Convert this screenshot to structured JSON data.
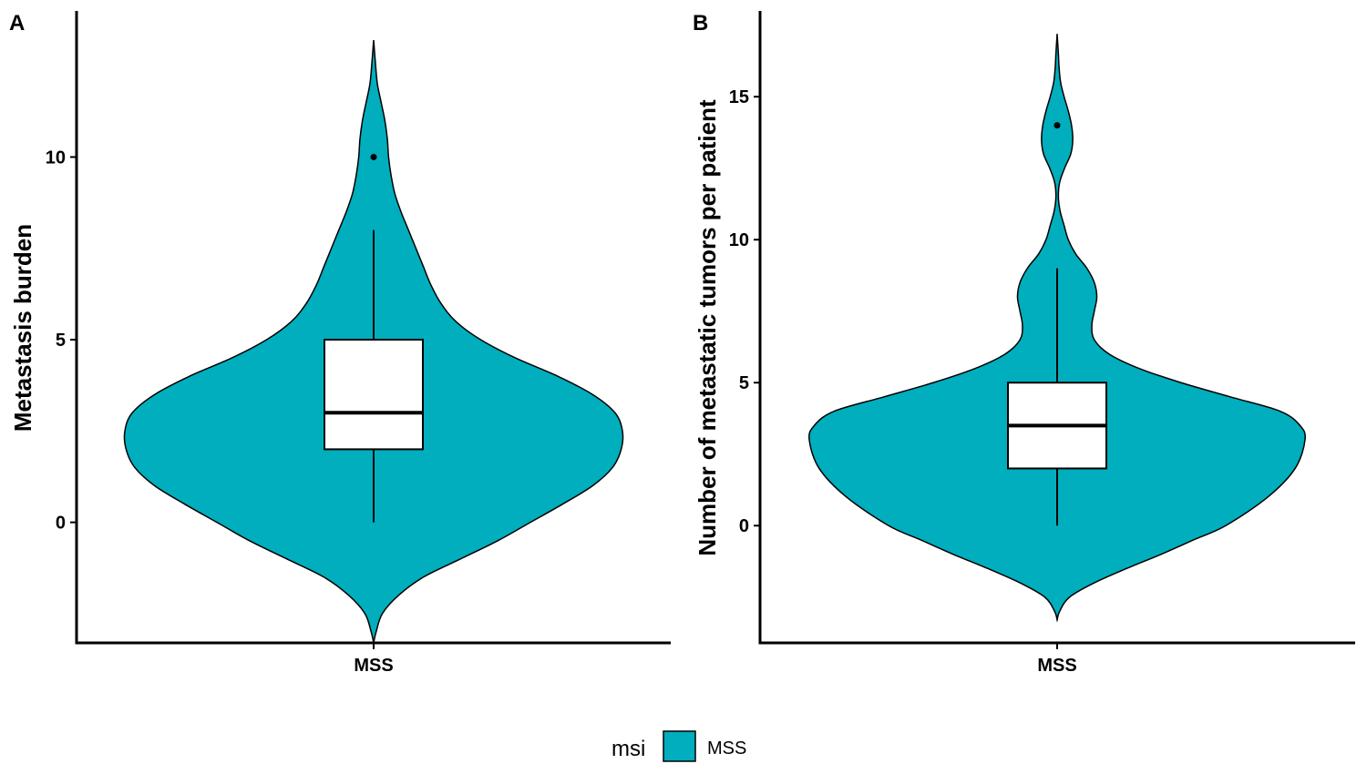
{
  "chart_data": [
    {
      "panel_tag": "A",
      "type": "violin",
      "ylabel": "Metastasis burden",
      "xlabel": "",
      "categories": [
        "MSS"
      ],
      "ylim": [
        -3.3,
        14.0
      ],
      "yticks": [
        0,
        5,
        10
      ],
      "grid": false,
      "fill_color": "#00AEBD",
      "violin": {
        "y_min": -3.3,
        "y_max": 13.2,
        "density_profile": [
          [
            -3.3,
            0.0
          ],
          [
            -3.0,
            0.01
          ],
          [
            -2.5,
            0.035
          ],
          [
            -2.0,
            0.1
          ],
          [
            -1.5,
            0.2
          ],
          [
            -1.0,
            0.35
          ],
          [
            -0.5,
            0.5
          ],
          [
            0.0,
            0.63
          ],
          [
            0.5,
            0.76
          ],
          [
            1.0,
            0.88
          ],
          [
            1.5,
            0.96
          ],
          [
            2.0,
            0.995
          ],
          [
            2.5,
            1.0
          ],
          [
            3.0,
            0.97
          ],
          [
            3.5,
            0.88
          ],
          [
            4.0,
            0.74
          ],
          [
            4.5,
            0.57
          ],
          [
            5.0,
            0.43
          ],
          [
            5.5,
            0.33
          ],
          [
            6.0,
            0.27
          ],
          [
            6.5,
            0.23
          ],
          [
            7.0,
            0.2
          ],
          [
            7.5,
            0.17
          ],
          [
            8.0,
            0.14
          ],
          [
            8.5,
            0.11
          ],
          [
            9.0,
            0.085
          ],
          [
            9.5,
            0.07
          ],
          [
            10.0,
            0.06
          ],
          [
            10.5,
            0.055
          ],
          [
            11.0,
            0.045
          ],
          [
            11.5,
            0.03
          ],
          [
            12.0,
            0.015
          ],
          [
            12.5,
            0.008
          ],
          [
            13.2,
            0.0
          ]
        ]
      },
      "box": {
        "min": 0,
        "q1": 2,
        "median": 3,
        "q3": 5,
        "max": 8
      },
      "outliers": [
        10
      ]
    },
    {
      "panel_tag": "B",
      "type": "violin",
      "ylabel": "Number of metastatic tumors per patient",
      "xlabel": "",
      "categories": [
        "MSS"
      ],
      "ylim": [
        -4.1,
        18.0
      ],
      "yticks": [
        0,
        5,
        10,
        15
      ],
      "grid": false,
      "fill_color": "#00AEBD",
      "violin": {
        "y_min": -3.3,
        "y_max": 17.2,
        "density_profile": [
          [
            -3.3,
            0.0
          ],
          [
            -3.0,
            0.01
          ],
          [
            -2.5,
            0.05
          ],
          [
            -2.0,
            0.15
          ],
          [
            -1.5,
            0.28
          ],
          [
            -1.0,
            0.42
          ],
          [
            -0.5,
            0.55
          ],
          [
            0.0,
            0.68
          ],
          [
            1.0,
            0.85
          ],
          [
            2.0,
            0.96
          ],
          [
            3.0,
            1.0
          ],
          [
            3.5,
            0.98
          ],
          [
            4.0,
            0.9
          ],
          [
            4.5,
            0.7
          ],
          [
            5.0,
            0.5
          ],
          [
            5.5,
            0.33
          ],
          [
            6.0,
            0.21
          ],
          [
            6.5,
            0.15
          ],
          [
            7.0,
            0.14
          ],
          [
            7.5,
            0.15
          ],
          [
            8.0,
            0.16
          ],
          [
            8.5,
            0.15
          ],
          [
            9.0,
            0.12
          ],
          [
            9.5,
            0.075
          ],
          [
            10.0,
            0.045
          ],
          [
            10.5,
            0.028
          ],
          [
            11.0,
            0.012
          ],
          [
            11.5,
            0.005
          ],
          [
            12.0,
            0.01
          ],
          [
            12.5,
            0.03
          ],
          [
            13.0,
            0.055
          ],
          [
            13.5,
            0.063
          ],
          [
            14.0,
            0.058
          ],
          [
            14.5,
            0.045
          ],
          [
            15.0,
            0.028
          ],
          [
            15.5,
            0.014
          ],
          [
            16.0,
            0.008
          ],
          [
            16.5,
            0.005
          ],
          [
            17.2,
            0.0
          ]
        ]
      },
      "box": {
        "min": 0,
        "q1": 2,
        "median": 3.5,
        "q3": 5,
        "max": 9
      },
      "outliers": [
        14
      ]
    }
  ],
  "legend": {
    "title": "msi",
    "placement": "bottom",
    "items": [
      {
        "label": "MSS",
        "color": "#00AEBD"
      }
    ]
  }
}
